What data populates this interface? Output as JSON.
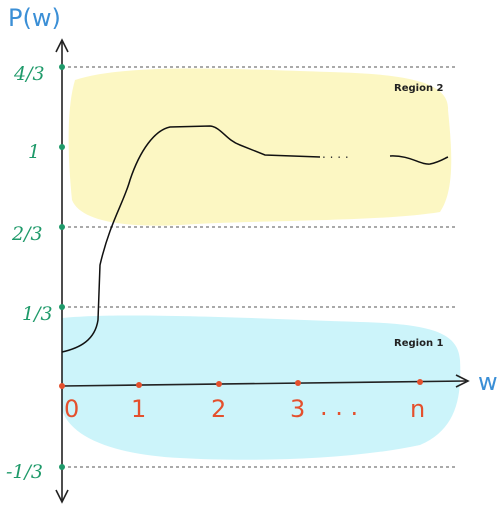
{
  "axes": {
    "y_label": "P(w)",
    "x_label": "w"
  },
  "y_ticks": [
    "4/3",
    "1",
    "2/3",
    "1/3",
    "-1/3"
  ],
  "x_ticks": [
    "0",
    "1",
    "2",
    "3",
    "n"
  ],
  "x_ellipsis": ". . .",
  "curve_ellipsis": ". . . .",
  "regions": [
    "Region 2",
    "Region 1"
  ]
}
